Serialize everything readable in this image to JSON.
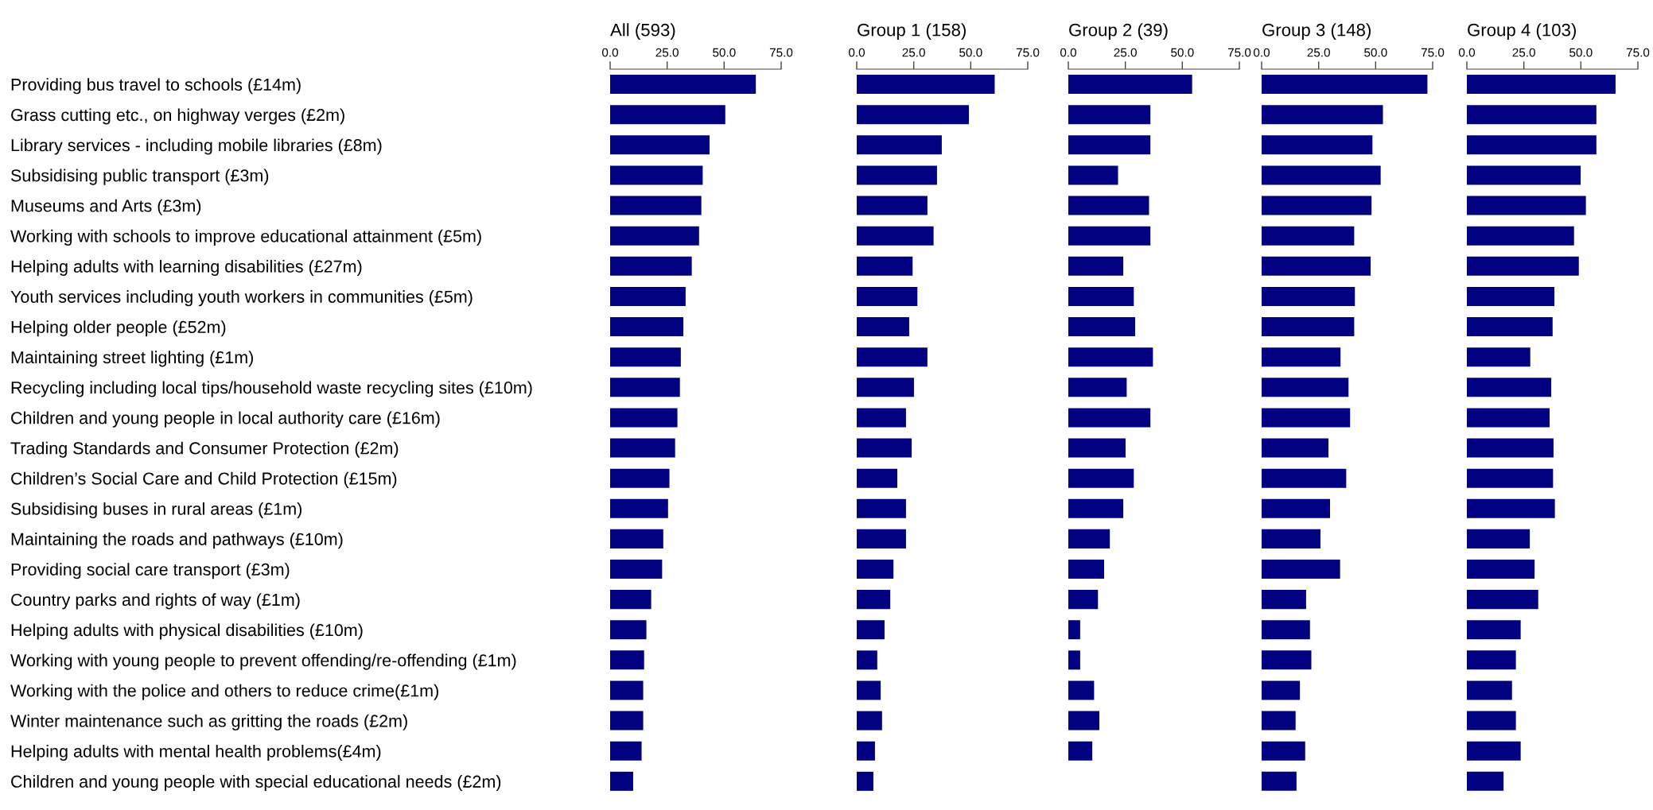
{
  "chart_data": [
    {
      "type": "bar",
      "orientation": "horizontal",
      "title": "All (593)",
      "color": "#000080",
      "xlim": [
        0,
        75
      ],
      "xticks": [
        {
          "value": 0,
          "label": "0.0"
        },
        {
          "value": 25,
          "label": "25.0"
        },
        {
          "value": 50,
          "label": "50.0"
        },
        {
          "value": 75,
          "label": "75.0"
        }
      ],
      "grid": false,
      "categories": [
        "Providing bus travel to schools (£14m)",
        "Grass cutting etc., on highway verges (£2m)",
        "Library services - including mobile libraries (£8m)",
        "Subsidising public transport (£3m)",
        "Museums and Arts (£3m)",
        "Working with schools to improve educational attainment (£5m)",
        "Helping adults with learning disabilities (£27m)",
        "Youth services including youth workers in communities (£5m)",
        "Helping older people (£52m)",
        "Maintaining street lighting (£1m)",
        "Recycling including local tips/household waste recycling sites (£10m)",
        "Children and young people in local authority care (£16m)",
        "Trading Standards and Consumer Protection (£2m)",
        "Children’s Social Care and Child Protection (£15m)",
        "Subsidising buses in rural areas (£1m)",
        "Maintaining the roads and pathways (£10m)",
        "Providing social care transport (£3m)",
        "Country parks and rights of way (£1m)",
        "Helping adults with physical disabilities (£10m)",
        "Working with young people to prevent offending/re-offending (£1m)",
        "Working with the police and others to reduce crime(£1m)",
        "Winter maintenance such as gritting the roads (£2m)",
        "Helping adults with mental health problems(£4m)",
        "Children and young people with special educational needs (£2m)"
      ],
      "values": [
        63.9,
        50.5,
        43.6,
        40.6,
        40.0,
        39.0,
        35.8,
        33.1,
        32.1,
        31.0,
        30.6,
        29.5,
        28.5,
        26.0,
        25.4,
        23.3,
        22.8,
        18.0,
        15.9,
        14.9,
        14.5,
        14.5,
        13.8,
        10.1
      ]
    },
    {
      "type": "bar",
      "orientation": "horizontal",
      "title": "Group 1 (158)",
      "color": "#000080",
      "xlim": [
        0,
        75
      ],
      "xticks": [
        {
          "value": 0,
          "label": "0.0"
        },
        {
          "value": 25,
          "label": "25.0"
        },
        {
          "value": 50,
          "label": "50.0"
        },
        {
          "value": 75,
          "label": "75.0"
        }
      ],
      "grid": false,
      "tick_labels": "x",
      "categories": [
        null,
        null,
        null,
        null,
        null,
        null,
        null,
        null,
        null,
        null,
        null,
        null,
        null,
        null,
        null,
        null,
        null,
        null,
        null,
        null,
        null,
        null,
        null,
        null
      ],
      "values": [
        60.5,
        49.2,
        37.3,
        35.2,
        31.0,
        33.7,
        24.5,
        26.6,
        23.0,
        31.0,
        25.1,
        21.6,
        24.1,
        17.8,
        21.6,
        21.6,
        16.1,
        14.7,
        12.2,
        9.0,
        10.5,
        11.1,
        8.0,
        7.3
      ]
    },
    {
      "type": "bar",
      "orientation": "horizontal",
      "title": "Group 2 (39)",
      "color": "#000080",
      "xlim": [
        0,
        75
      ],
      "xticks": [
        {
          "value": 0,
          "label": "0.0"
        },
        {
          "value": 25,
          "label": "25.0"
        },
        {
          "value": 50,
          "label": "50.0"
        },
        {
          "value": 75,
          "label": "75.0"
        }
      ],
      "grid": false,
      "tick_labels": "x",
      "categories": [
        null,
        null,
        null,
        null,
        null,
        null,
        null,
        null,
        null,
        null,
        null,
        null,
        null,
        null,
        null,
        null,
        null,
        null,
        null,
        null,
        null,
        null,
        null,
        null
      ],
      "values": [
        54.3,
        36.0,
        36.0,
        21.8,
        35.4,
        36.0,
        24.1,
        28.7,
        29.3,
        37.1,
        25.6,
        36.0,
        25.1,
        28.7,
        24.1,
        18.2,
        15.7,
        13.0,
        5.2,
        5.2,
        11.3,
        13.6,
        10.5,
        null
      ]
    },
    {
      "type": "bar",
      "orientation": "horizontal",
      "title": "Group 3 (148)",
      "color": "#000080",
      "xlim": [
        0,
        75
      ],
      "xticks": [
        {
          "value": 0,
          "label": "0.0"
        },
        {
          "value": 25,
          "label": "25.0"
        },
        {
          "value": 50,
          "label": "50.0"
        },
        {
          "value": 75,
          "label": "75.0"
        }
      ],
      "grid": false,
      "tick_labels": "x",
      "categories": [
        null,
        null,
        null,
        null,
        null,
        null,
        null,
        null,
        null,
        null,
        null,
        null,
        null,
        null,
        null,
        null,
        null,
        null,
        null,
        null,
        null,
        null,
        null,
        null
      ],
      "values": [
        72.7,
        53.2,
        48.6,
        52.2,
        48.2,
        40.6,
        47.8,
        40.9,
        40.6,
        34.6,
        38.1,
        38.8,
        29.3,
        37.1,
        30.0,
        25.8,
        34.4,
        19.5,
        21.2,
        21.8,
        16.8,
        14.9,
        19.1,
        15.3
      ]
    },
    {
      "type": "bar",
      "orientation": "horizontal",
      "title": "Group 4 (103)",
      "color": "#000080",
      "xlim": [
        0,
        75
      ],
      "xticks": [
        {
          "value": 0,
          "label": "0.0"
        },
        {
          "value": 25,
          "label": "25.0"
        },
        {
          "value": 50,
          "label": "50.0"
        },
        {
          "value": 75,
          "label": "75.0"
        }
      ],
      "grid": false,
      "tick_labels": "x",
      "categories": [
        null,
        null,
        null,
        null,
        null,
        null,
        null,
        null,
        null,
        null,
        null,
        null,
        null,
        null,
        null,
        null,
        null,
        null,
        null,
        null,
        null,
        null,
        null,
        null
      ],
      "values": [
        65.2,
        56.8,
        56.8,
        49.9,
        52.2,
        47.0,
        49.1,
        38.4,
        37.6,
        27.8,
        37.0,
        36.3,
        38.0,
        37.8,
        38.6,
        27.6,
        29.7,
        31.3,
        23.6,
        21.5,
        19.8,
        21.5,
        23.6,
        16.1
      ]
    }
  ]
}
